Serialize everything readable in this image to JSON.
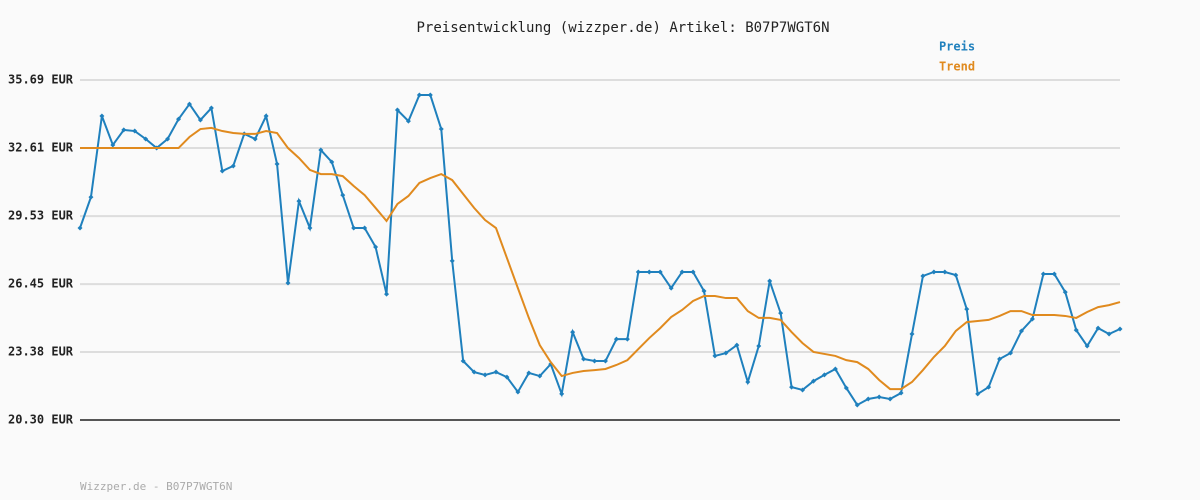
{
  "chart_data": {
    "type": "line",
    "title": "Preisentwicklung (wizzper.de) Artikel: B07P7WGT6N",
    "footer": "Wizzper.de - B07P7WGT6N",
    "legend": "top-right",
    "grid": true,
    "ylim": [
      20.3,
      35.69
    ],
    "yticks": [
      {
        "value": 20.3,
        "label": "20.30 EUR"
      },
      {
        "value": 23.38,
        "label": "23.38 EUR"
      },
      {
        "value": 26.45,
        "label": "26.45 EUR"
      },
      {
        "value": 29.53,
        "label": "29.53 EUR"
      },
      {
        "value": 32.61,
        "label": "32.61 EUR"
      },
      {
        "value": 35.69,
        "label": "35.69 EUR"
      }
    ],
    "series": [
      {
        "name": "Preis",
        "color": "#1f80bd",
        "markers": true,
        "values": [
          28.99,
          30.39,
          34.06,
          32.75,
          33.43,
          33.38,
          33.02,
          32.61,
          33.02,
          33.92,
          34.6,
          33.88,
          34.42,
          31.57,
          31.8,
          33.25,
          33.02,
          34.06,
          31.89,
          26.5,
          30.21,
          28.99,
          32.52,
          31.98,
          30.48,
          28.99,
          28.99,
          28.13,
          26.0,
          34.33,
          33.83,
          35.01,
          35.01,
          33.47,
          27.5,
          22.97,
          22.47,
          22.34,
          22.47,
          22.24,
          21.57,
          22.43,
          22.29,
          22.83,
          21.48,
          24.28,
          23.06,
          22.97,
          22.97,
          23.96,
          23.96,
          27.0,
          27.0,
          27.0,
          26.27,
          27.0,
          27.0,
          26.14,
          23.2,
          23.33,
          23.69,
          22.02,
          23.65,
          26.59,
          25.14,
          21.79,
          21.66,
          22.06,
          22.34,
          22.61,
          21.75,
          20.98,
          21.25,
          21.34,
          21.25,
          21.52,
          24.19,
          26.82,
          27.0,
          27.0,
          26.86,
          25.32,
          21.48,
          21.79,
          23.06,
          23.33,
          24.33,
          24.87,
          26.91,
          26.91,
          26.09,
          24.37,
          23.65,
          24.46,
          24.19,
          24.42
        ]
      },
      {
        "name": "Trend",
        "color": "#e08a1e",
        "markers": false,
        "values": [
          32.61,
          32.61,
          32.61,
          32.61,
          32.61,
          32.61,
          32.61,
          32.61,
          32.61,
          32.61,
          33.11,
          33.47,
          33.52,
          33.38,
          33.29,
          33.25,
          33.25,
          33.38,
          33.29,
          32.61,
          32.16,
          31.62,
          31.43,
          31.43,
          31.34,
          30.89,
          30.48,
          29.9,
          29.31,
          30.08,
          30.44,
          31.03,
          31.25,
          31.43,
          31.16,
          30.53,
          29.9,
          29.35,
          28.99,
          27.63,
          26.27,
          24.92,
          23.69,
          22.92,
          22.29,
          22.43,
          22.52,
          22.56,
          22.61,
          22.79,
          23.01,
          23.51,
          24.01,
          24.46,
          24.96,
          25.28,
          25.69,
          25.91,
          25.91,
          25.82,
          25.82,
          25.23,
          24.92,
          24.92,
          24.83,
          24.28,
          23.78,
          23.38,
          23.29,
          23.2,
          23.01,
          22.92,
          22.61,
          22.11,
          21.7,
          21.7,
          22.02,
          22.56,
          23.15,
          23.65,
          24.33,
          24.73,
          24.78,
          24.83,
          25.01,
          25.23,
          25.23,
          25.05,
          25.05,
          25.05,
          25.01,
          24.92,
          25.19,
          25.41,
          25.5,
          25.64
        ]
      }
    ]
  }
}
